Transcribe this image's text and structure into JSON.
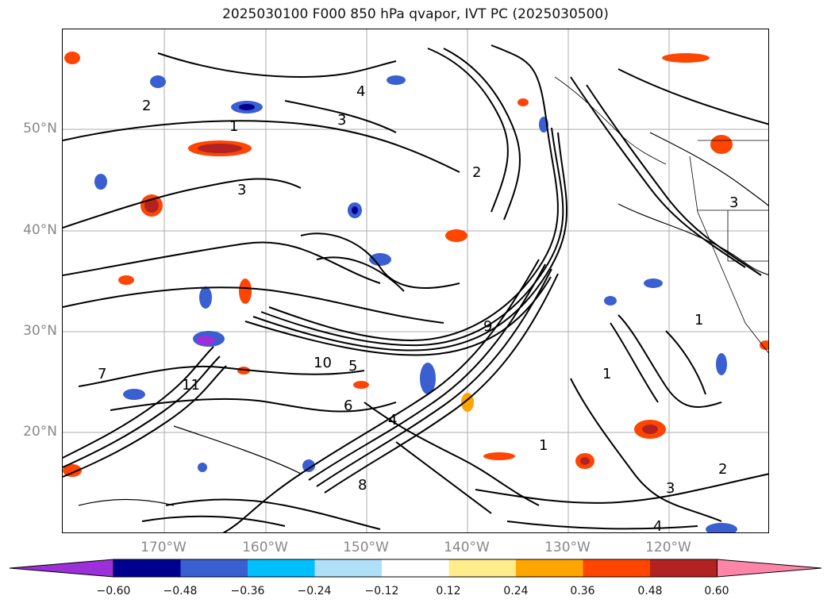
{
  "title": "2025030100 F000 850 hPa qvapor, IVT PC (2025030500)",
  "lat_labels": [
    "50°N",
    "40°N",
    "30°N",
    "20°N"
  ],
  "lon_labels": [
    "170°W",
    "160°W",
    "150°W",
    "140°W",
    "130°W",
    "120°W"
  ],
  "colorbar": {
    "ticks": [
      "−0.60",
      "−0.48",
      "−0.36",
      "−0.24",
      "−0.12",
      "0.12",
      "0.24",
      "0.36",
      "0.48",
      "0.60"
    ],
    "colors": [
      "#9b30d8",
      "#000090",
      "#3a5fd0",
      "#00bfff",
      "#b0e0f8",
      "#ffffff",
      "#ffec8b",
      "#ffa500",
      "#ff4500",
      "#b22222",
      "#ff85a8"
    ]
  },
  "contour_labels": [
    "1",
    "2",
    "3",
    "4",
    "5",
    "6",
    "7",
    "8",
    "9",
    "10",
    "11"
  ]
}
